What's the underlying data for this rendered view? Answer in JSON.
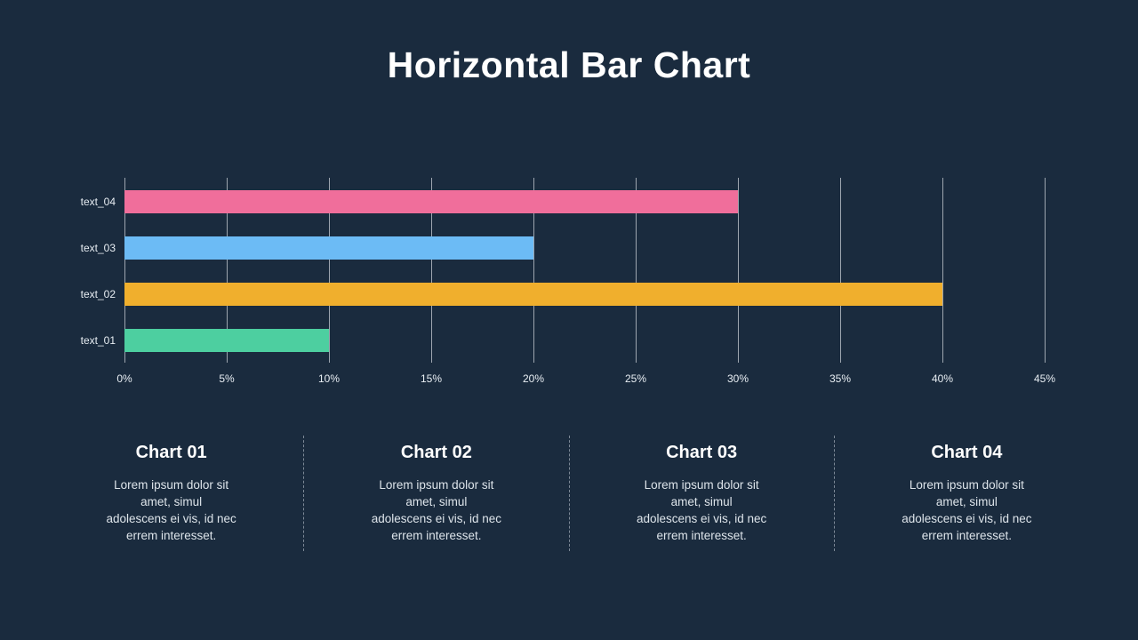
{
  "slide": {
    "title": "Horizontal Bar Chart"
  },
  "chart_data": {
    "type": "bar",
    "orientation": "horizontal",
    "categories": [
      "text_04",
      "text_03",
      "text_02",
      "text_01"
    ],
    "values": [
      30,
      20,
      40,
      10
    ],
    "unit": "%",
    "bar_colors": [
      "#f06e9b",
      "#6cbbf5",
      "#f0af2d",
      "#4dcfa0"
    ],
    "x_ticks": [
      "0%",
      "5%",
      "10%",
      "15%",
      "20%",
      "25%",
      "30%",
      "35%",
      "40%",
      "45%"
    ],
    "xlim": [
      0,
      45
    ],
    "grid": true,
    "legend": false,
    "title": "Horizontal Bar Chart",
    "xlabel": "",
    "ylabel": ""
  },
  "cards": [
    {
      "title": "Chart 01",
      "body_lines": [
        "Lorem ipsum dolor sit",
        "amet, simul",
        "adolescens ei vis, id nec",
        "errem interesset."
      ]
    },
    {
      "title": "Chart 02",
      "body_lines": [
        "Lorem ipsum dolor sit",
        "amet, simul",
        "adolescens ei vis, id nec",
        "errem interesset."
      ]
    },
    {
      "title": "Chart 03",
      "body_lines": [
        "Lorem ipsum dolor sit",
        "amet, simul",
        "adolescens ei vis, id nec",
        "errem interesset."
      ]
    },
    {
      "title": "Chart 04",
      "body_lines": [
        "Lorem ipsum dolor sit",
        "amet, simul",
        "adolescens ei vis, id nec",
        "errem interesset."
      ]
    }
  ],
  "colors": {
    "background": "#1a2b3e",
    "title_text": "#ffffff",
    "gridline": "#c9cfd6",
    "axis_text": "#e8eef3",
    "body_text": "#dde4ea"
  }
}
